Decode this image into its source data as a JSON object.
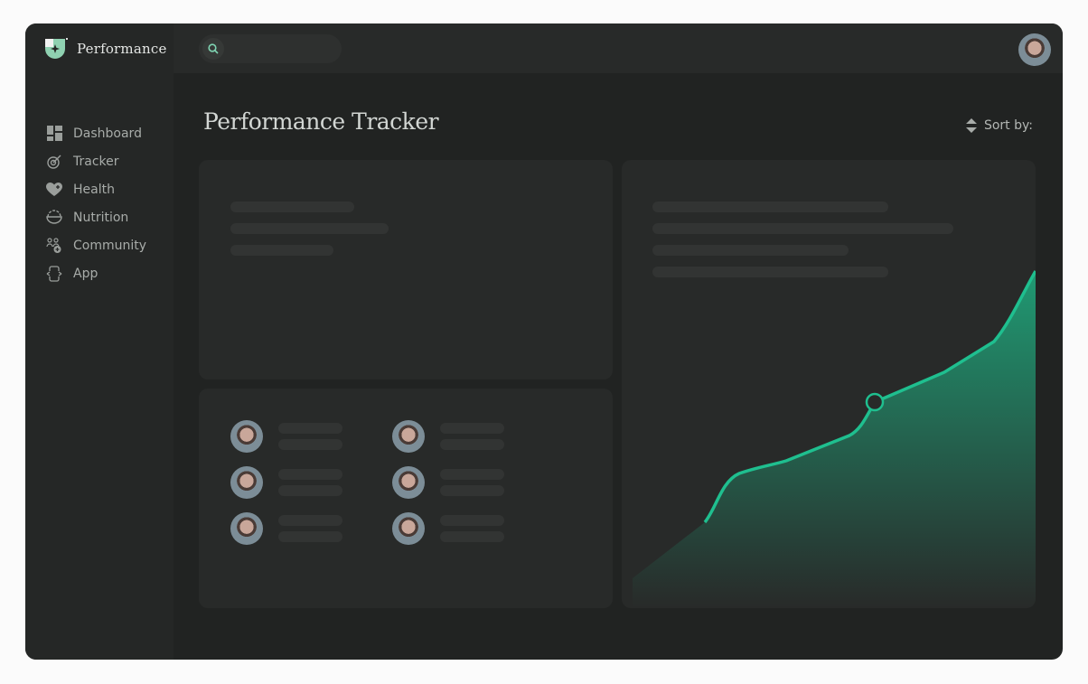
{
  "app": {
    "name": "Performance",
    "logo_icon": "shield-star-logo"
  },
  "search": {
    "icon": "search-icon",
    "placeholder": ""
  },
  "user": {
    "avatar": "user-avatar"
  },
  "sidebar": {
    "items": [
      {
        "label": "Dashboard",
        "icon": "grid-icon"
      },
      {
        "label": "Tracker",
        "icon": "target-icon"
      },
      {
        "label": "Health",
        "icon": "heart-plus-icon"
      },
      {
        "label": "Nutrition",
        "icon": "bowl-icon"
      },
      {
        "label": "Community",
        "icon": "people-add-icon"
      },
      {
        "label": "App",
        "icon": "app-arrows-icon"
      }
    ]
  },
  "main": {
    "title": "Performance Tracker",
    "sort_label": "Sort by:",
    "sort_icon": "sort-arrows-icon"
  },
  "colors": {
    "accent": "#1fbf8f",
    "card": "#282a29",
    "background": "#212322"
  }
}
